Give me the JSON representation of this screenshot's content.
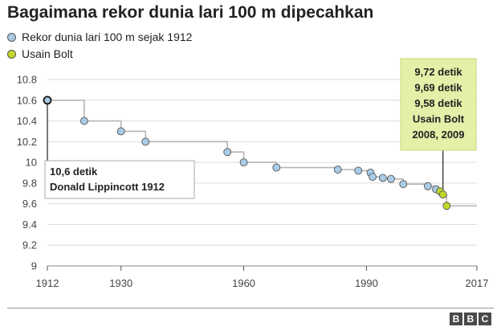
{
  "title": "Bagaimana rekor dunia lari 100 m dipecahkan",
  "legend": [
    {
      "label": "Rekor dunia lari 100 m sejak 1912",
      "color": "#a9cbe6"
    },
    {
      "label": "Usain Bolt",
      "color": "#c3d82a"
    }
  ],
  "chart_data": {
    "type": "line",
    "title": "Bagaimana rekor dunia lari 100 m dipecahkan",
    "xlabel": "",
    "ylabel": "",
    "xlim": [
      1912,
      2017
    ],
    "ylim": [
      9,
      10.8
    ],
    "x_ticks": [
      "1912",
      "1930",
      "1960",
      "1990",
      "2017"
    ],
    "y_ticks": [
      "10.8",
      "10.6",
      "10.4",
      "10.2",
      "10",
      "9.8",
      "9.6",
      "9.4",
      "9.2",
      "9"
    ],
    "grid": "horizontal",
    "series": [
      {
        "name": "Rekor dunia lari 100 m sejak 1912",
        "x": [
          1912,
          1921,
          1930,
          1936,
          1956,
          1960,
          1968,
          1983,
          1988,
          1991,
          1991.5,
          1994,
          1996,
          1999,
          2005,
          2007
        ],
        "y": [
          10.6,
          10.4,
          10.3,
          10.2,
          10.1,
          10.0,
          9.95,
          9.93,
          9.92,
          9.9,
          9.86,
          9.85,
          9.84,
          9.79,
          9.77,
          9.74
        ],
        "color": "#a9cbe6"
      },
      {
        "name": "Usain Bolt",
        "x": [
          2008,
          2008.7,
          2009.6
        ],
        "y": [
          9.72,
          9.69,
          9.58
        ],
        "color": "#c3d82a"
      }
    ],
    "annotations": [
      {
        "lines": [
          "10,6 detik",
          "Donald Lippincott 1912"
        ],
        "x": 1912,
        "y": 10.6
      },
      {
        "lines": [
          "9,72 detik",
          "9,69 detik",
          "9,58 detik",
          "Usain Bolt",
          "2008, 2009"
        ],
        "x": 2008.7,
        "y": 9.69
      }
    ]
  },
  "footer": {
    "logo": [
      "B",
      "B",
      "C"
    ]
  }
}
